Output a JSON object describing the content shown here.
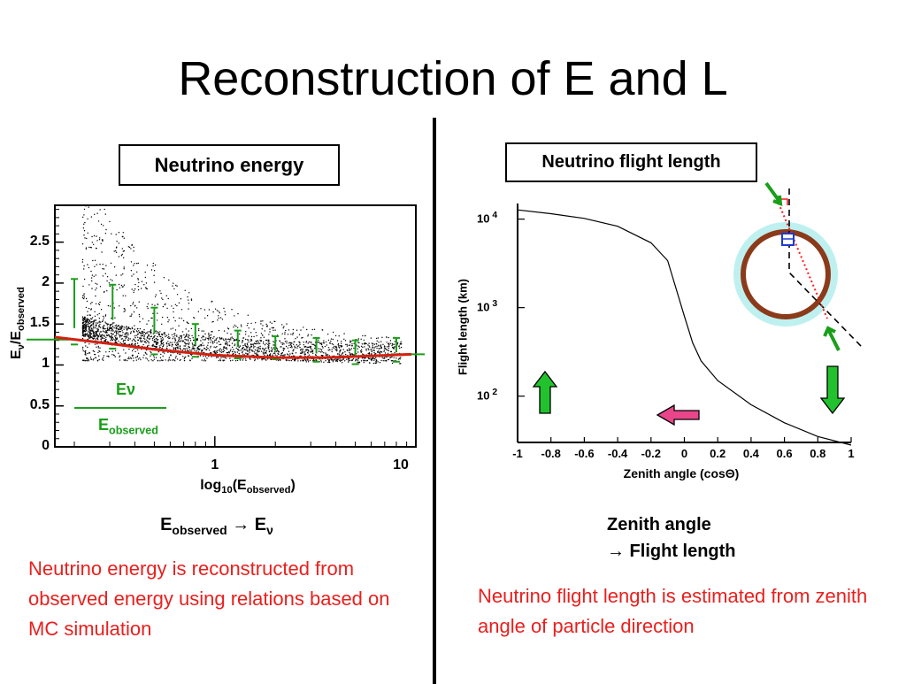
{
  "slide": {
    "title": "Reconstruction of E and L",
    "left_box_label": "Neutrino energy",
    "right_box_label": "Neutrino flight length",
    "energy_relation": {
      "a": "E",
      "a_sub": "observed",
      "arrow": "→",
      "b": "E",
      "b_sub": "ν"
    },
    "energy_description": "Neutrino energy is reconstructed from observed energy using relations based on MC simulation",
    "zenith_caption_line1": "Zenith angle",
    "zenith_caption_line2": "→ Flight length",
    "flight_description": "Neutrino flight length is estimated from zenith angle of particle direction",
    "colors": {
      "red_text": "#e8201e",
      "green": "#1a9e1a",
      "fit_line": "#d42010",
      "track": "#8b3a1a",
      "pink": "#e8458a"
    }
  },
  "chart_data": [
    {
      "type": "scatter",
      "x_scale": "log",
      "xlim": [
        0.16,
        10
      ],
      "ylim": [
        0,
        2.95
      ],
      "x_ticks": [
        "1",
        "10"
      ],
      "y_ticks": [
        "0",
        "0.5",
        "1",
        "1.5",
        "2",
        "2.5"
      ],
      "xlabel": {
        "pre": "log",
        "pre_sub": "10",
        "main": "(E",
        "sub": "observed",
        "post": ")"
      },
      "ylabel": {
        "a": "E",
        "a_sub": "ν",
        "mid": "/E",
        "b_sub": "observed"
      },
      "legend": {
        "numerator": "Eν",
        "denominator": "E",
        "denominator_sub": "observed"
      },
      "fit_curve": {
        "x": [
          0.16,
          0.3,
          0.5,
          1.0,
          2.0,
          3.5,
          6.0,
          9.5
        ],
        "y": [
          1.34,
          1.26,
          1.19,
          1.12,
          1.09,
          1.09,
          1.11,
          1.13
        ]
      },
      "profile": {
        "x": [
          0.2,
          0.31,
          0.5,
          0.8,
          1.3,
          2.0,
          3.2,
          5.0,
          8.0
        ],
        "y": [
          1.45,
          1.55,
          1.38,
          1.24,
          1.22,
          1.17,
          1.14,
          1.12,
          1.16
        ],
        "err_low": [
          0.2,
          0.35,
          0.25,
          0.14,
          0.14,
          0.1,
          0.1,
          0.11,
          0.12
        ],
        "err_high": [
          2.05,
          1.98,
          1.7,
          1.5,
          1.42,
          1.35,
          1.33,
          1.3,
          1.33
        ]
      }
    },
    {
      "type": "line",
      "xlim": [
        -1,
        1
      ],
      "y_scale": "log",
      "ylim": [
        30,
        15000
      ],
      "x_ticks": [
        "-1",
        "-0.8",
        "-0.6",
        "-0.4",
        "-0.2",
        "0",
        "0.2",
        "0.4",
        "0.6",
        "0.8",
        "1"
      ],
      "y_ticks": [
        {
          "base": "10",
          "exp": "4"
        },
        {
          "base": "10",
          "exp": "3"
        },
        {
          "base": "10",
          "exp": "2"
        }
      ],
      "xlabel": "Zenith angle (cosΘ)",
      "ylabel": "Flight length (km)",
      "series": [
        {
          "x": [
            -1,
            -0.8,
            -0.6,
            -0.4,
            -0.2,
            -0.1,
            0,
            0.05,
            0.1,
            0.2,
            0.4,
            0.6,
            0.8,
            1
          ],
          "y": [
            12700,
            11500,
            10200,
            8300,
            5400,
            3400,
            800,
            400,
            250,
            150,
            80,
            50,
            35,
            28
          ]
        }
      ]
    }
  ]
}
